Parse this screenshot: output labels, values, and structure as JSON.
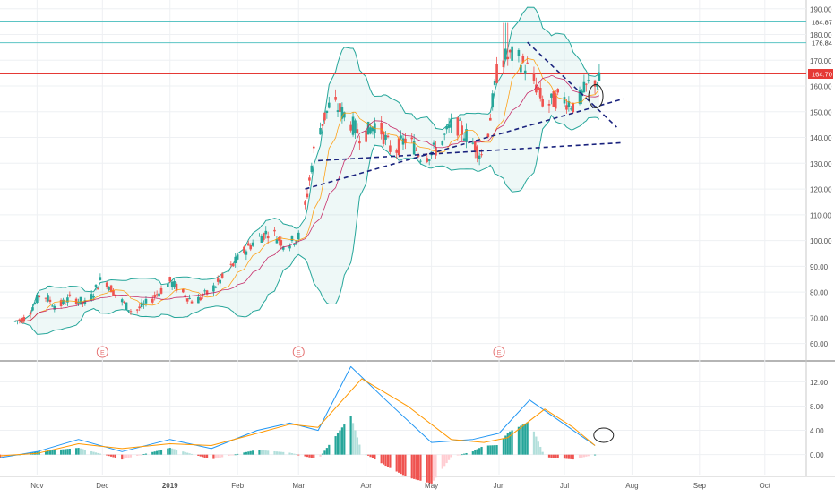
{
  "chart_data": {
    "type": "candlestick",
    "main_panel": {
      "y_ticks": [
        "190.00",
        "180.00",
        "170.00",
        "160.00",
        "150.00",
        "140.00",
        "130.00",
        "120.00",
        "110.00",
        "100.00",
        "90.00",
        "80.00",
        "70.00",
        "60.00"
      ],
      "y_range": [
        55,
        192
      ],
      "horizontal_lines": [
        {
          "value": 184.87,
          "label": "184.87",
          "color": "#5bc4c4"
        },
        {
          "value": 176.84,
          "label": "176.84",
          "color": "#5bc4c4"
        },
        {
          "value": 164.7,
          "label": "164.70",
          "color": "#e53935"
        }
      ],
      "earnings_markers": [
        {
          "date": "2018-12-01",
          "label": "E"
        },
        {
          "date": "2019-03-01",
          "label": "E"
        },
        {
          "date": "2019-06-01",
          "label": "E"
        }
      ],
      "candles_approx": [
        {
          "date": "2018-10-20",
          "o": 64,
          "h": 70,
          "l": 62,
          "c": 68
        },
        {
          "date": "2018-10-27",
          "o": 68,
          "h": 74,
          "l": 66,
          "c": 70
        },
        {
          "date": "2018-11-03",
          "o": 70,
          "h": 82,
          "l": 68,
          "c": 80
        },
        {
          "date": "2018-11-10",
          "o": 80,
          "h": 84,
          "l": 72,
          "c": 74
        },
        {
          "date": "2018-11-17",
          "o": 74,
          "h": 79,
          "l": 70,
          "c": 78
        },
        {
          "date": "2018-11-24",
          "o": 78,
          "h": 80,
          "l": 72,
          "c": 75
        },
        {
          "date": "2018-12-01",
          "o": 75,
          "h": 88,
          "l": 74,
          "c": 86
        },
        {
          "date": "2018-12-08",
          "o": 86,
          "h": 88,
          "l": 74,
          "c": 78
        },
        {
          "date": "2018-12-15",
          "o": 78,
          "h": 82,
          "l": 68,
          "c": 72
        },
        {
          "date": "2018-12-22",
          "o": 72,
          "h": 80,
          "l": 68,
          "c": 76
        },
        {
          "date": "2019-01-01",
          "o": 76,
          "h": 86,
          "l": 74,
          "c": 84
        },
        {
          "date": "2019-01-12",
          "o": 84,
          "h": 86,
          "l": 74,
          "c": 76
        },
        {
          "date": "2019-01-19",
          "o": 76,
          "h": 82,
          "l": 72,
          "c": 80
        },
        {
          "date": "2019-01-26",
          "o": 80,
          "h": 88,
          "l": 78,
          "c": 86
        },
        {
          "date": "2019-02-02",
          "o": 86,
          "h": 96,
          "l": 84,
          "c": 94
        },
        {
          "date": "2019-02-09",
          "o": 94,
          "h": 102,
          "l": 92,
          "c": 100
        },
        {
          "date": "2019-02-16",
          "o": 100,
          "h": 108,
          "l": 96,
          "c": 104
        },
        {
          "date": "2019-02-23",
          "o": 104,
          "h": 110,
          "l": 96,
          "c": 98
        },
        {
          "date": "2019-03-02",
          "o": 98,
          "h": 104,
          "l": 96,
          "c": 102
        },
        {
          "date": "2019-03-09",
          "o": 110,
          "h": 146,
          "l": 108,
          "c": 140
        },
        {
          "date": "2019-03-16",
          "o": 140,
          "h": 156,
          "l": 138,
          "c": 154
        },
        {
          "date": "2019-03-23",
          "o": 154,
          "h": 156,
          "l": 144,
          "c": 148
        },
        {
          "date": "2019-03-30",
          "o": 148,
          "h": 152,
          "l": 136,
          "c": 140
        },
        {
          "date": "2019-04-06",
          "o": 140,
          "h": 150,
          "l": 134,
          "c": 146
        },
        {
          "date": "2019-04-13",
          "o": 146,
          "h": 148,
          "l": 130,
          "c": 134
        },
        {
          "date": "2019-04-20",
          "o": 134,
          "h": 142,
          "l": 130,
          "c": 140
        },
        {
          "date": "2019-04-27",
          "o": 140,
          "h": 144,
          "l": 130,
          "c": 132
        },
        {
          "date": "2019-05-04",
          "o": 132,
          "h": 140,
          "l": 128,
          "c": 136
        },
        {
          "date": "2019-05-11",
          "o": 136,
          "h": 148,
          "l": 134,
          "c": 146
        },
        {
          "date": "2019-05-18",
          "o": 146,
          "h": 148,
          "l": 136,
          "c": 140
        },
        {
          "date": "2019-05-25",
          "o": 140,
          "h": 144,
          "l": 128,
          "c": 132
        },
        {
          "date": "2019-06-01",
          "o": 132,
          "h": 184,
          "l": 130,
          "c": 170
        },
        {
          "date": "2019-06-08",
          "o": 170,
          "h": 176,
          "l": 164,
          "c": 172
        },
        {
          "date": "2019-06-15",
          "o": 172,
          "h": 176,
          "l": 162,
          "c": 166
        },
        {
          "date": "2019-06-22",
          "o": 166,
          "h": 170,
          "l": 148,
          "c": 152
        },
        {
          "date": "2019-06-29",
          "o": 152,
          "h": 158,
          "l": 144,
          "c": 156
        },
        {
          "date": "2019-07-06",
          "o": 156,
          "h": 160,
          "l": 148,
          "c": 152
        },
        {
          "date": "2019-07-13",
          "o": 152,
          "h": 164,
          "l": 150,
          "c": 162
        }
      ]
    },
    "indicator_panel": {
      "y_ticks": [
        "12.00",
        "8.00",
        "4.00",
        "0.00"
      ],
      "y_range": [
        -3,
        15
      ],
      "macd_line_approx": [
        {
          "date": "2018-10-15",
          "v": -0.5
        },
        {
          "date": "2018-11-01",
          "v": 0.5
        },
        {
          "date": "2018-11-20",
          "v": 2.5
        },
        {
          "date": "2018-12-10",
          "v": 0.5
        },
        {
          "date": "2019-01-01",
          "v": 2.5
        },
        {
          "date": "2019-01-20",
          "v": 1.0
        },
        {
          "date": "2019-02-10",
          "v": 4.0
        },
        {
          "date": "2019-02-25",
          "v": 5.2
        },
        {
          "date": "2019-03-10",
          "v": 4.0
        },
        {
          "date": "2019-03-25",
          "v": 14.5
        },
        {
          "date": "2019-04-10",
          "v": 9.0
        },
        {
          "date": "2019-05-01",
          "v": 2.0
        },
        {
          "date": "2019-05-20",
          "v": 2.5
        },
        {
          "date": "2019-06-01",
          "v": 3.5
        },
        {
          "date": "2019-06-15",
          "v": 9.0
        },
        {
          "date": "2019-07-01",
          "v": 5.0
        },
        {
          "date": "2019-07-15",
          "v": 1.5
        }
      ],
      "signal_line_approx": [
        {
          "date": "2018-10-15",
          "v": -0.2
        },
        {
          "date": "2018-11-01",
          "v": 0.2
        },
        {
          "date": "2018-11-20",
          "v": 1.8
        },
        {
          "date": "2018-12-10",
          "v": 1.0
        },
        {
          "date": "2019-01-01",
          "v": 1.8
        },
        {
          "date": "2019-01-20",
          "v": 1.5
        },
        {
          "date": "2019-02-10",
          "v": 3.5
        },
        {
          "date": "2019-02-25",
          "v": 5.0
        },
        {
          "date": "2019-03-10",
          "v": 4.5
        },
        {
          "date": "2019-03-30",
          "v": 12.5
        },
        {
          "date": "2019-04-20",
          "v": 8.0
        },
        {
          "date": "2019-05-10",
          "v": 2.5
        },
        {
          "date": "2019-05-25",
          "v": 2.0
        },
        {
          "date": "2019-06-05",
          "v": 2.8
        },
        {
          "date": "2019-06-22",
          "v": 7.5
        },
        {
          "date": "2019-07-05",
          "v": 4.5
        },
        {
          "date": "2019-07-15",
          "v": 1.5
        }
      ]
    },
    "x_ticks": [
      "Nov",
      "Dec",
      "2019",
      "Feb",
      "Mar",
      "Apr",
      "May",
      "Jun",
      "Jul",
      "Aug",
      "Sep",
      "Oct"
    ],
    "x_tick_dates": [
      "2018-11-01",
      "2018-12-01",
      "2019-01-01",
      "2019-02-01",
      "2019-03-01",
      "2019-04-01",
      "2019-05-01",
      "2019-06-01",
      "2019-07-01",
      "2019-08-01",
      "2019-09-01",
      "2019-10-01"
    ],
    "x_range": [
      "2018-10-15",
      "2019-10-20"
    ],
    "colors": {
      "up": "#26a69a",
      "down": "#ef5350",
      "macd": "#2196f3",
      "signal": "#ff9800",
      "bands": "#26a69a",
      "trendline": "#1a237e"
    }
  }
}
